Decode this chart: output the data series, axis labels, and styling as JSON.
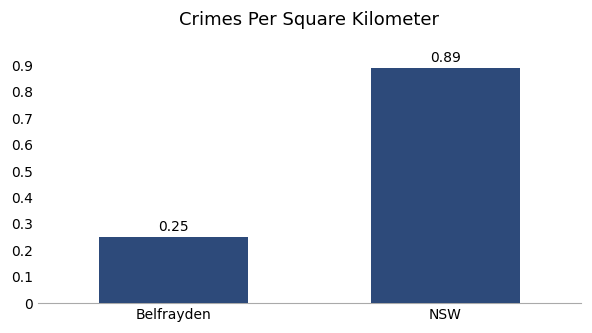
{
  "categories": [
    "Belfrayden",
    "NSW"
  ],
  "values": [
    0.25,
    0.89
  ],
  "bar_color": "#2d4a7a",
  "title": "Crimes Per Square Kilometer",
  "title_fontsize": 13,
  "label_fontsize": 10,
  "value_fontsize": 10,
  "ylim": [
    0,
    1.0
  ],
  "yticks": [
    0,
    0.1,
    0.2,
    0.3,
    0.4,
    0.5,
    0.6,
    0.7,
    0.8,
    0.9
  ],
  "background_color": "#ffffff",
  "bar_width": 0.55
}
